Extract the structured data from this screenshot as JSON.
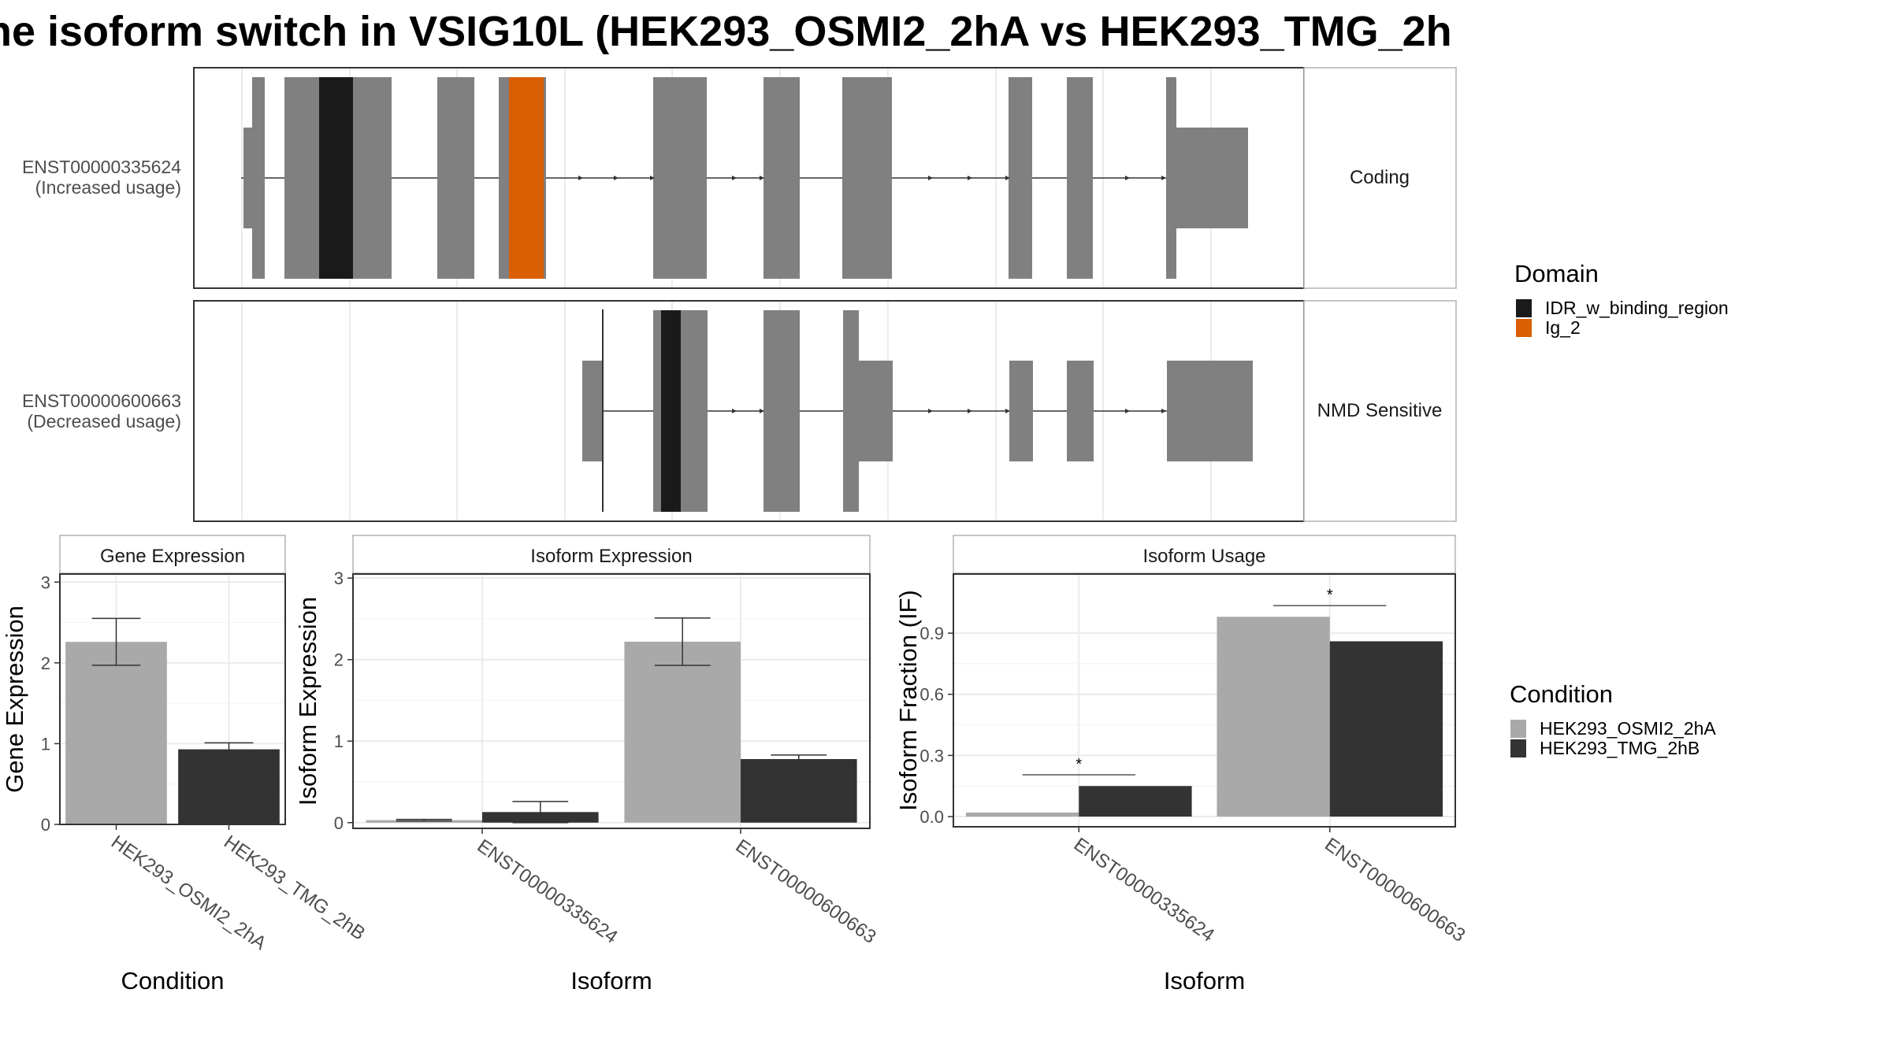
{
  "title": "ne isoform switch in VSIG10L (HEK293_OSMI2_2hA vs HEK293_TMG_2h",
  "colors": {
    "exon": "#808080",
    "domain_idr": "#1a1a1a",
    "domain_ig2": "#d95f02",
    "cond_a": "#a9a9a9",
    "cond_b": "#333333",
    "grid": "#ebebeb",
    "panel_border": "#333333",
    "strip_border": "#b3b3b3"
  },
  "isoform_panel": {
    "tracks": [
      {
        "id": "ENST00000335624",
        "usage": "(Increased usage)",
        "category": "Coding"
      },
      {
        "id": "ENST00000600663",
        "usage": "(Decreased usage)",
        "category": "NMD Sensitive"
      }
    ],
    "legend_title": "Domain",
    "legend": [
      {
        "label": "IDR_w_binding_region",
        "color": "#1a1a1a"
      },
      {
        "label": "Ig_2",
        "color": "#d95f02"
      }
    ]
  },
  "chart_data": [
    {
      "type": "bar",
      "title": "Gene Expression",
      "xlabel": "Condition",
      "ylabel": "Gene Expression",
      "categories": [
        "HEK293_OSMI2_2hA",
        "HEK293_TMG_2hB"
      ],
      "ylim": [
        0,
        3.1
      ],
      "yticks": [
        0,
        1,
        2,
        3
      ],
      "values": [
        2.26,
        0.93
      ],
      "errors": [
        [
          1.97,
          2.55
        ],
        [
          0.86,
          1.01
        ]
      ]
    },
    {
      "type": "bar",
      "title": "Isoform Expression",
      "xlabel": "Isoform",
      "ylabel": "Isoform Expression",
      "categories": [
        "ENST00000335624",
        "ENST00000600663"
      ],
      "ylim": [
        -0.07,
        3.05
      ],
      "yticks": [
        0,
        1,
        2,
        3
      ],
      "series": [
        {
          "name": "HEK293_OSMI2_2hA",
          "values": [
            0.03,
            2.22
          ],
          "errors": [
            [
              0.02,
              0.04
            ],
            [
              1.93,
              2.51
            ]
          ]
        },
        {
          "name": "HEK293_TMG_2hB",
          "values": [
            0.13,
            0.78
          ],
          "errors": [
            [
              0.0,
              0.26
            ],
            [
              0.74,
              0.83
            ]
          ]
        }
      ]
    },
    {
      "type": "bar",
      "title": "Isoform Usage",
      "xlabel": "Isoform",
      "ylabel": "Isoform Fraction (IF)",
      "categories": [
        "ENST00000335624",
        "ENST00000600663"
      ],
      "ylim": [
        -0.05,
        1.19
      ],
      "yticks": [
        0.0,
        0.3,
        0.6,
        0.9
      ],
      "ytick_labels": [
        "0.0",
        "0.3",
        "0.6",
        "0.9"
      ],
      "series": [
        {
          "name": "HEK293_OSMI2_2hA",
          "values": [
            0.02,
            0.98
          ]
        },
        {
          "name": "HEK293_TMG_2hB",
          "values": [
            0.15,
            0.86
          ]
        }
      ],
      "significance": [
        "*",
        "*"
      ]
    }
  ],
  "condition_legend": {
    "title": "Condition",
    "items": [
      {
        "label": "HEK293_OSMI2_2hA",
        "color": "#a9a9a9"
      },
      {
        "label": "HEK293_TMG_2hB",
        "color": "#333333"
      }
    ]
  }
}
